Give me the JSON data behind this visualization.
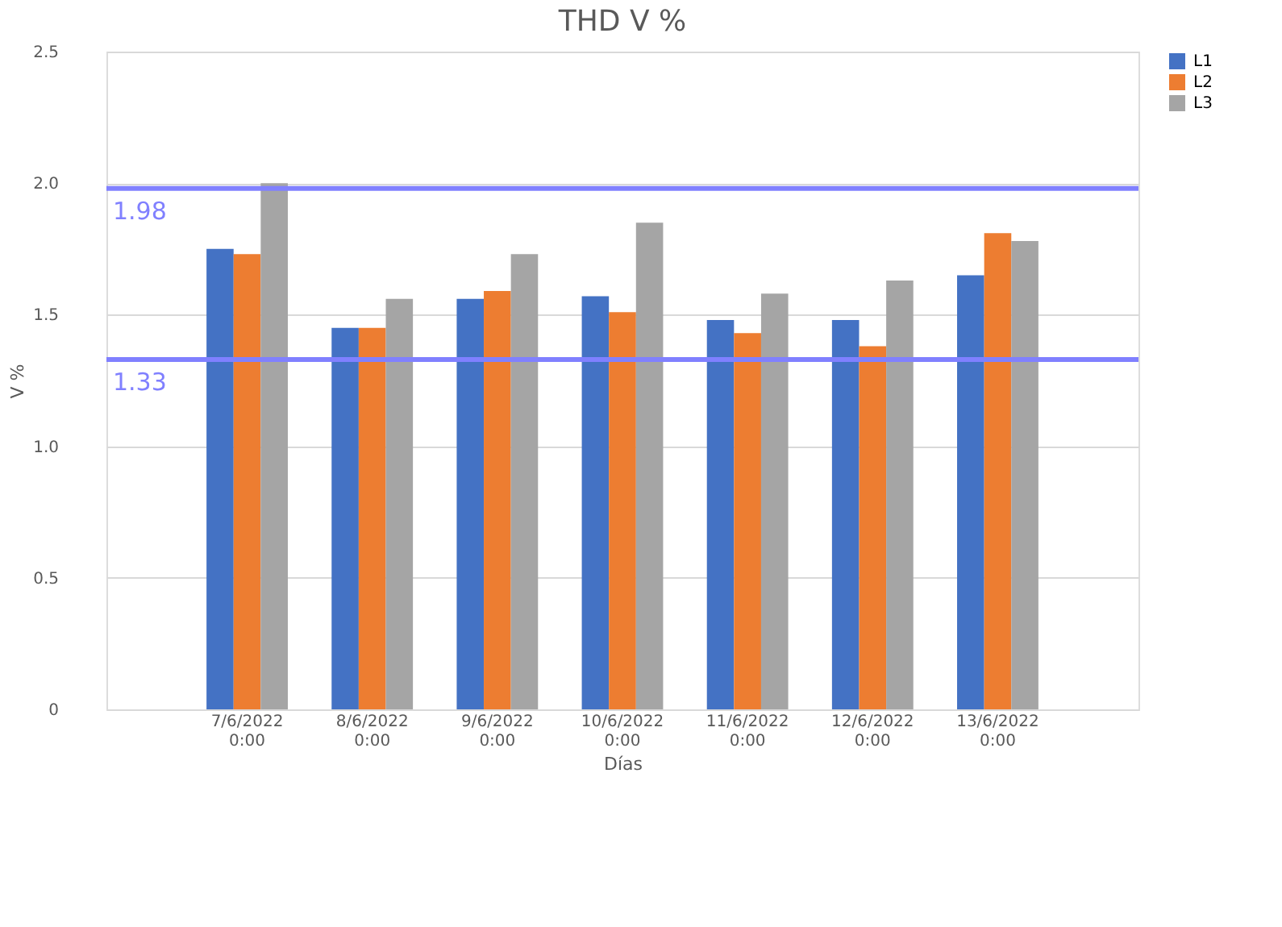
{
  "chart_data": {
    "type": "bar",
    "title": "THD V %",
    "xlabel": "Días",
    "ylabel": "V %",
    "categories": [
      "7/6/2022 0:00",
      "8/6/2022 0:00",
      "9/6/2022 0:00",
      "10/6/2022 0:00",
      "11/6/2022 0:00",
      "12/6/2022 0:00",
      "13/6/2022 0:00"
    ],
    "series": [
      {
        "name": "L1",
        "color": "#4472c4",
        "values": [
          1.75,
          1.45,
          1.56,
          1.57,
          1.48,
          1.48,
          1.65
        ]
      },
      {
        "name": "L2",
        "color": "#ed7d31",
        "values": [
          1.73,
          1.45,
          1.59,
          1.51,
          1.43,
          1.38,
          1.81
        ]
      },
      {
        "name": "L3",
        "color": "#a5a5a5",
        "values": [
          2.0,
          1.56,
          1.73,
          1.85,
          1.58,
          1.63,
          1.78
        ]
      }
    ],
    "ylim": [
      0,
      2.5
    ],
    "yticks": [
      {
        "value": 0,
        "label": "0"
      },
      {
        "value": 0.5,
        "label": "0.5"
      },
      {
        "value": 1,
        "label": "1.0"
      },
      {
        "value": 1.5,
        "label": "1.5"
      },
      {
        "value": 2,
        "label": "2.0"
      },
      {
        "value": 2.5,
        "label": "2.5"
      }
    ],
    "ref_lines": [
      {
        "axis": "y",
        "value": 1.98,
        "label": "1.98",
        "color": "#8080ff"
      },
      {
        "axis": "y",
        "value": 1.33,
        "label": "1.33",
        "color": "#8080ff"
      }
    ],
    "grid": "y",
    "legend": "right"
  }
}
